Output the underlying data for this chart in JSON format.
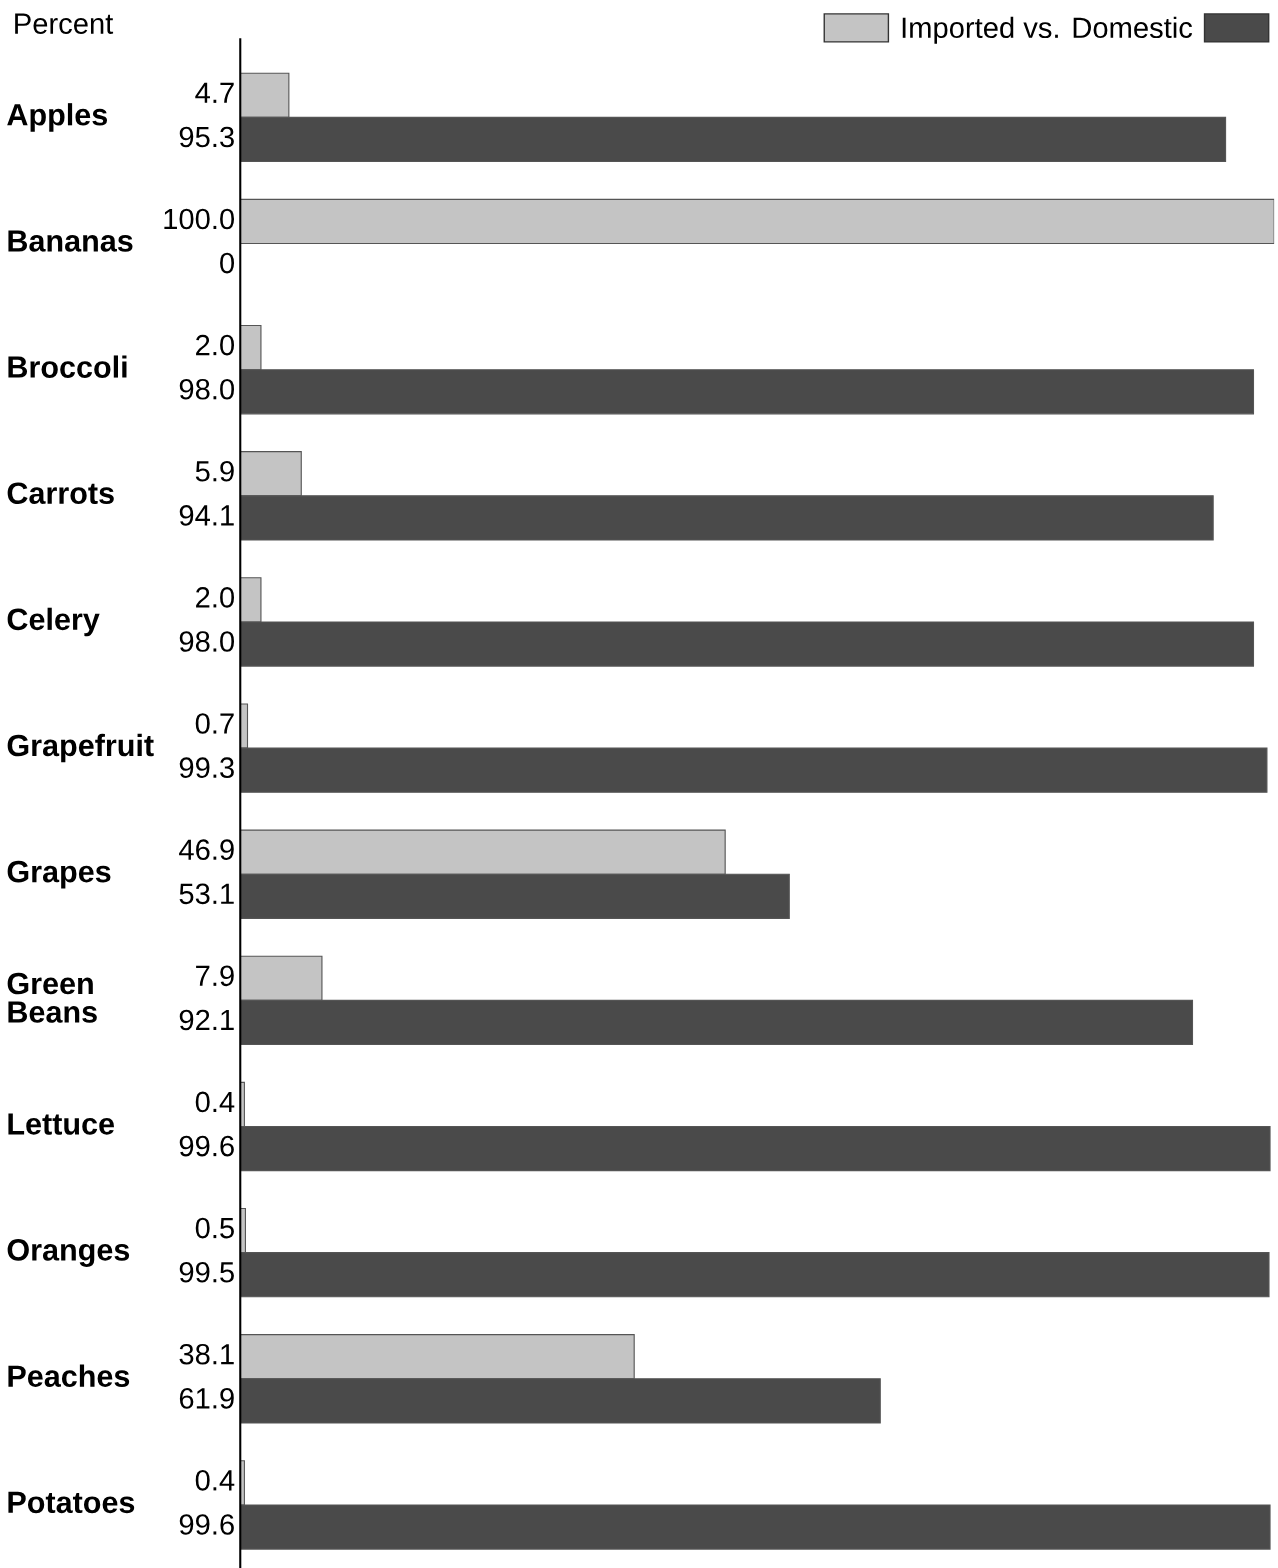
{
  "chart_data": {
    "type": "bar",
    "orientation": "horizontal",
    "legend": "top right",
    "annotations": [
      "Percent"
    ],
    "categories": [
      "Apples",
      "Bananas",
      "Broccoli",
      "Carrots",
      "Celery",
      "Grapefruit",
      "Grapes",
      "Green\nBeans",
      "Lettuce",
      "Oranges",
      "Peaches",
      "Potatoes"
    ],
    "series": [
      {
        "name": "Imported vs.",
        "color": "#c4c4c4",
        "values": [
          4.7,
          100.0,
          2.0,
          5.9,
          2.0,
          0.7,
          46.9,
          7.9,
          0.4,
          0.5,
          38.1,
          0.4
        ],
        "value_labels": [
          "4.7",
          "100.0",
          "2.0",
          "5.9",
          "2.0",
          "0.7",
          "46.9",
          "7.9",
          "0.4",
          "0.5",
          "38.1",
          "0.4"
        ]
      },
      {
        "name": "Domestic",
        "color": "#4a4a4a",
        "values": [
          95.3,
          0,
          98.0,
          94.1,
          98.0,
          99.3,
          53.1,
          92.1,
          99.6,
          99.5,
          61.9,
          99.6
        ],
        "value_labels": [
          "95.3",
          "0",
          "98.0",
          "94.1",
          "98.0",
          "99.3",
          "53.1",
          "92.1",
          "99.6",
          "99.5",
          "61.9",
          "99.6"
        ]
      }
    ],
    "xlim": [
      0,
      100
    ]
  }
}
